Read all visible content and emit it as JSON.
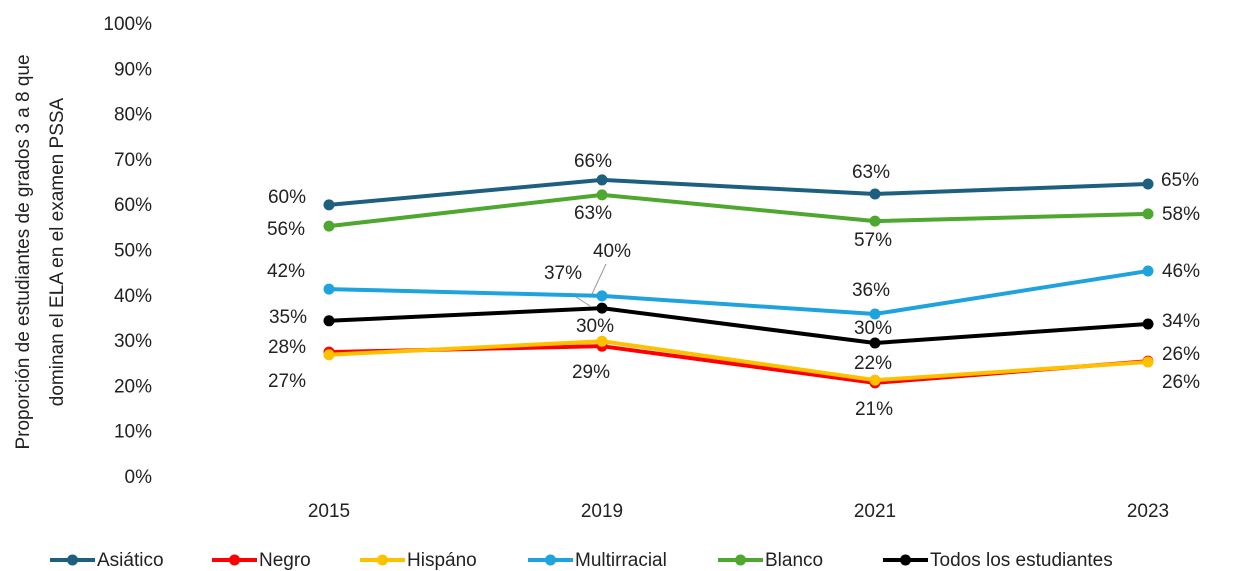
{
  "chart_data": {
    "type": "line",
    "ylabel": [
      "Proporción de estudiantes de grados 3 a 8 que",
      "dominan el ELA en el examen PSSA"
    ],
    "categories": [
      "2015",
      "2019",
      "2021",
      "2023"
    ],
    "ylim": [
      0,
      100
    ],
    "yticks": [
      {
        "value": 0,
        "label": "0%"
      },
      {
        "value": 10,
        "label": "10%"
      },
      {
        "value": 20,
        "label": "20%"
      },
      {
        "value": 30,
        "label": "30%"
      },
      {
        "value": 40,
        "label": "40%"
      },
      {
        "value": 50,
        "label": "50%"
      },
      {
        "value": 60,
        "label": "60%"
      },
      {
        "value": 70,
        "label": "70%"
      },
      {
        "value": 80,
        "label": "80%"
      },
      {
        "value": 90,
        "label": "90%"
      },
      {
        "value": 100,
        "label": "100%"
      }
    ],
    "grid": false,
    "legend": "bottom",
    "series": [
      {
        "name": "Asiático",
        "color": "#1d5f7e",
        "values": [
          60.3,
          65.8,
          62.7,
          64.9
        ],
        "value_labels": [
          "60%",
          "66%",
          "63%",
          "65%"
        ]
      },
      {
        "name": "Negro",
        "color": "#ff0000",
        "values": [
          27.8,
          29.1,
          21.0,
          25.8
        ],
        "value_labels": [
          "28%",
          "29%",
          "21%",
          "26%"
        ]
      },
      {
        "name": "Hispáno",
        "color": "#ffc000",
        "values": [
          27.2,
          30.2,
          21.6,
          25.6
        ],
        "value_labels": [
          "27%",
          "30%",
          "22%",
          "26%"
        ]
      },
      {
        "name": "Multirracial",
        "color": "#1fa3dc",
        "values": [
          41.7,
          40.2,
          36.2,
          45.7
        ],
        "value_labels": [
          "42%",
          "40%",
          "36%",
          "46%"
        ]
      },
      {
        "name": "Blanco",
        "color": "#4ea72e",
        "values": [
          55.6,
          62.5,
          56.7,
          58.3
        ],
        "value_labels": [
          "56%",
          "63%",
          "57%",
          "58%"
        ]
      },
      {
        "name": "Todos los estudiantes",
        "color": "#000000",
        "values": [
          34.7,
          37.5,
          29.8,
          34.0
        ],
        "value_labels": [
          "35%",
          "37%",
          "30%",
          "34%"
        ]
      }
    ]
  }
}
